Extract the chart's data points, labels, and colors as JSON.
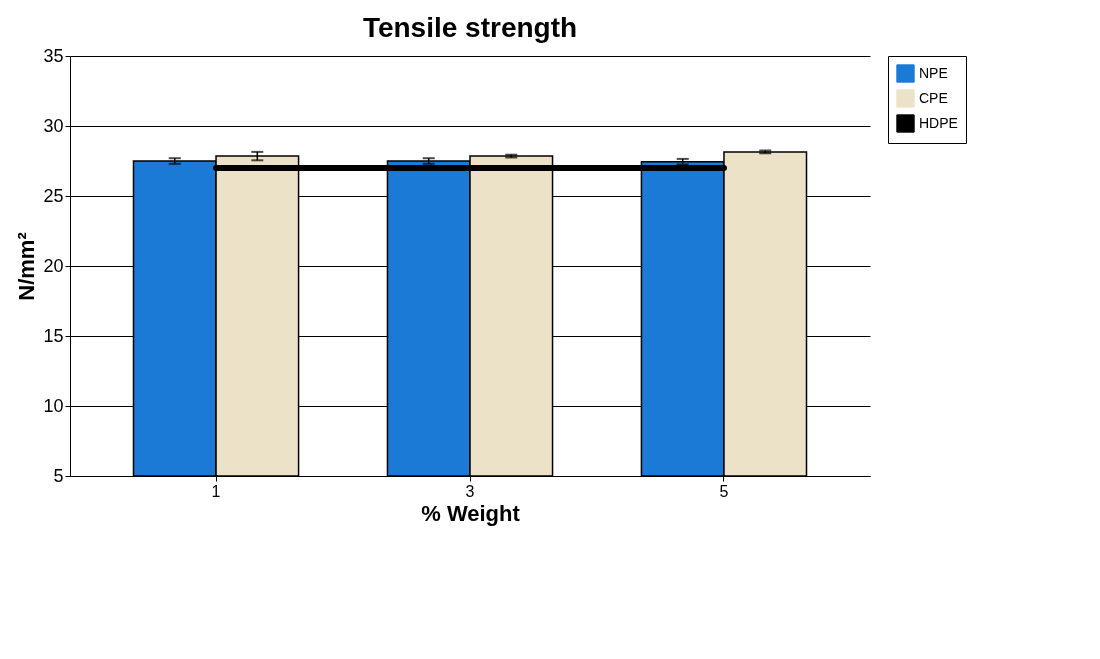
{
  "chart_data": {
    "type": "bar",
    "title": "Tensile strength",
    "xlabel": "% Weight",
    "ylabel": "N/mm²",
    "categories": [
      "1",
      "3",
      "5"
    ],
    "series": [
      {
        "name": "NPE",
        "color": "#1a7ad6",
        "values": [
          27.5,
          27.5,
          27.45
        ],
        "errors": [
          0.2,
          0.2,
          0.2
        ]
      },
      {
        "name": "CPE",
        "color": "#ebe2c8",
        "values": [
          27.85,
          27.85,
          28.15
        ],
        "errors": [
          0.3,
          0.1,
          0.1
        ]
      },
      {
        "name": "HDPE",
        "type": "line",
        "color": "#000000",
        "values": [
          27,
          27,
          27
        ]
      }
    ],
    "ylim": [
      5,
      35
    ],
    "yticks": [
      5,
      10,
      15,
      20,
      25,
      30,
      35
    ],
    "grid": "y",
    "legend": "right",
    "marker": "none"
  }
}
